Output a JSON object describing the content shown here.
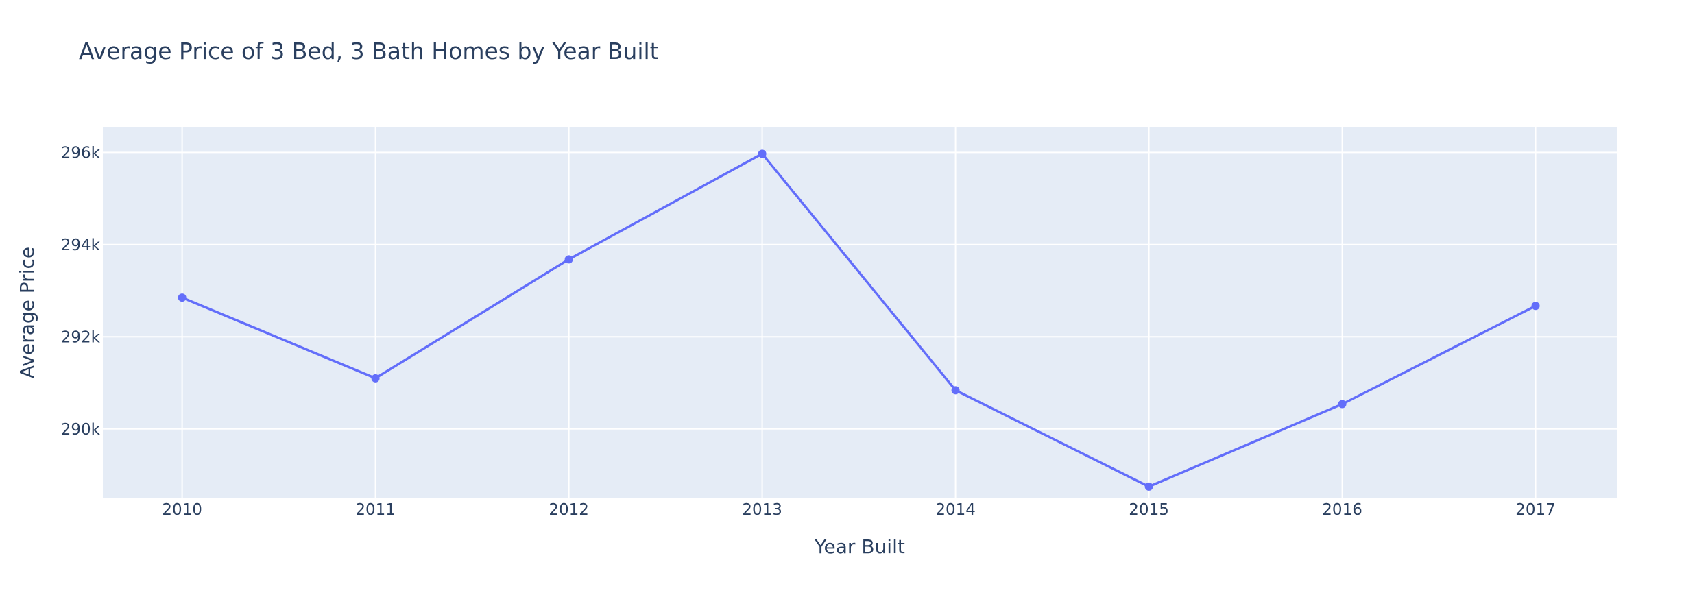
{
  "chart_data": {
    "type": "line",
    "title": "Average Price of 3 Bed, 3 Bath Homes by Year Built",
    "xlabel": "Year Built",
    "ylabel": "Average Price",
    "x": [
      2010,
      2011,
      2012,
      2013,
      2014,
      2015,
      2016,
      2017
    ],
    "series": [
      {
        "values": [
          292850,
          291100,
          293680,
          295970,
          290840,
          288750,
          290540,
          292670
        ]
      }
    ],
    "x_ticks": [
      "2010",
      "2011",
      "2012",
      "2013",
      "2014",
      "2015",
      "2016",
      "2017"
    ],
    "y_tick_values": [
      290000,
      292000,
      294000,
      296000
    ],
    "y_tick_labels": [
      "290k",
      "292k",
      "294k",
      "296k"
    ],
    "xlim": [
      2009.59,
      2017.42
    ],
    "ylim": [
      288510,
      296540
    ],
    "grid": true,
    "legend": false,
    "colors": {
      "line": "#636efa",
      "plot_bg": "#e5ecf6",
      "text": "#2a3f5f"
    }
  }
}
